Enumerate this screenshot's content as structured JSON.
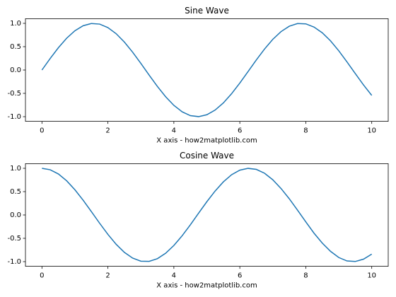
{
  "chart_data": [
    {
      "type": "line",
      "title": "Sine Wave",
      "xlabel": "X axis - how2matplotlib.com",
      "color": "#1f77b4",
      "x": [
        0,
        0.25,
        0.5,
        0.75,
        1,
        1.25,
        1.5,
        1.75,
        2,
        2.25,
        2.5,
        2.75,
        3,
        3.25,
        3.5,
        3.75,
        4,
        4.25,
        4.5,
        4.75,
        5,
        5.25,
        5.5,
        5.75,
        6,
        6.25,
        6.5,
        6.75,
        7,
        7.25,
        7.5,
        7.75,
        8,
        8.25,
        8.5,
        8.75,
        9,
        9.25,
        9.5,
        9.75,
        10
      ],
      "values": [
        0,
        0.247,
        0.479,
        0.682,
        0.841,
        0.949,
        0.997,
        0.984,
        0.909,
        0.778,
        0.598,
        0.382,
        0.141,
        -0.108,
        -0.351,
        -0.572,
        -0.757,
        -0.895,
        -0.978,
        -0.999,
        -0.959,
        -0.859,
        -0.706,
        -0.508,
        -0.279,
        -0.033,
        0.215,
        0.45,
        0.657,
        0.823,
        0.938,
        0.996,
        0.989,
        0.92,
        0.798,
        0.625,
        0.412,
        0.174,
        -0.075,
        -0.319,
        -0.544
      ],
      "xlim": [
        -0.5,
        10.5
      ],
      "xticks": [
        0,
        2,
        4,
        6,
        8,
        10
      ],
      "ylim": [
        -1.1,
        1.1
      ],
      "yticks": [
        {
          "value": 1,
          "label": "1.0"
        },
        0.5,
        {
          "value": 0,
          "label": "0.0"
        },
        -0.5,
        {
          "value": -1,
          "label": "-1.0"
        }
      ]
    },
    {
      "type": "line",
      "title": "Cosine Wave",
      "xlabel": "X axis - how2matplotlib.com",
      "color": "#1f77b4",
      "x": [
        0,
        0.25,
        0.5,
        0.75,
        1,
        1.25,
        1.5,
        1.75,
        2,
        2.25,
        2.5,
        2.75,
        3,
        3.25,
        3.5,
        3.75,
        4,
        4.25,
        4.5,
        4.75,
        5,
        5.25,
        5.5,
        5.75,
        6,
        6.25,
        6.5,
        6.75,
        7,
        7.25,
        7.5,
        7.75,
        8,
        8.25,
        8.5,
        8.75,
        9,
        9.25,
        9.5,
        9.75,
        10
      ],
      "values": [
        1,
        0.969,
        0.878,
        0.732,
        0.54,
        0.315,
        0.071,
        -0.178,
        -0.416,
        -0.628,
        -0.801,
        -0.924,
        -0.99,
        -0.994,
        -0.936,
        -0.821,
        -0.654,
        -0.446,
        -0.211,
        0.038,
        0.284,
        0.512,
        0.709,
        0.862,
        0.96,
        0.999,
        0.977,
        0.894,
        0.754,
        0.567,
        0.347,
        0.104,
        -0.146,
        -0.39,
        -0.602,
        -0.779,
        -0.911,
        -0.985,
        -0.997,
        -0.947,
        -0.839
      ],
      "xlim": [
        -0.5,
        10.5
      ],
      "xticks": [
        0,
        2,
        4,
        6,
        8,
        10
      ],
      "ylim": [
        -1.1,
        1.1
      ],
      "yticks": [
        {
          "value": 1,
          "label": "1.0"
        },
        0.5,
        {
          "value": 0,
          "label": "0.0"
        },
        -0.5,
        {
          "value": -1,
          "label": "-1.0"
        }
      ]
    }
  ]
}
